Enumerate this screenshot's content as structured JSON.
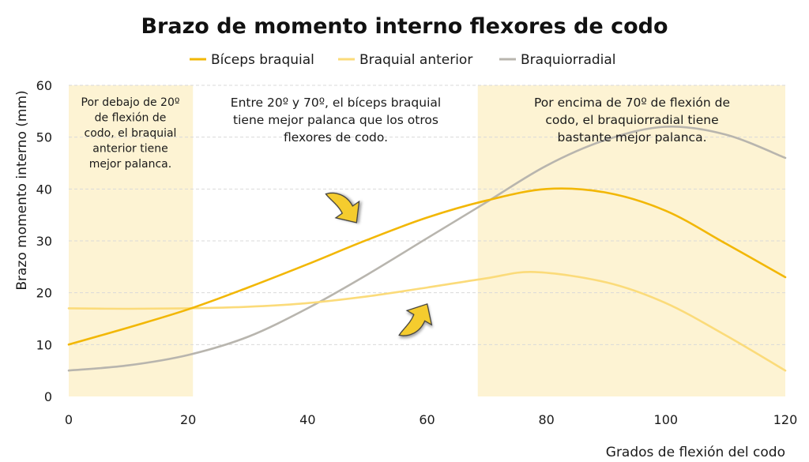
{
  "chart_data": {
    "type": "line",
    "title": "Brazo de momento interno flexores de codo",
    "xlabel": "Grados de flexión del codo",
    "ylabel": "Brazo momento interno (mm)",
    "xlim": [
      0,
      120
    ],
    "ylim": [
      0,
      60
    ],
    "xticks": [
      0,
      20,
      40,
      60,
      80,
      100,
      120
    ],
    "yticks": [
      0,
      10,
      20,
      30,
      40,
      50,
      60
    ],
    "grid": "horizontal-dashed",
    "legend_position": "top",
    "series": [
      {
        "name": "Bíceps braquial",
        "color": "#F2B705",
        "x": [
          0,
          10,
          20,
          30,
          40,
          50,
          60,
          70,
          80,
          90,
          100,
          110,
          120
        ],
        "y": [
          10,
          13.3,
          16.8,
          21,
          25.5,
          30.2,
          34.5,
          37.8,
          40,
          39.3,
          35.8,
          29.5,
          23
        ]
      },
      {
        "name": "Braquial anterior",
        "color": "#FBDB7A",
        "x": [
          0,
          10,
          20,
          30,
          40,
          50,
          60,
          70,
          78,
          90,
          100,
          110,
          120
        ],
        "y": [
          17,
          16.9,
          17,
          17.3,
          18,
          19.3,
          21,
          22.8,
          24,
          22,
          18,
          11.8,
          5
        ]
      },
      {
        "name": "Braquiorradial",
        "color": "#B8B5AE",
        "x": [
          0,
          10,
          20,
          30,
          40,
          50,
          60,
          70,
          80,
          90,
          100,
          110,
          120
        ],
        "y": [
          5,
          6,
          8,
          11.5,
          17,
          23.5,
          30.5,
          37.5,
          44.5,
          49.5,
          52,
          50.5,
          46
        ]
      }
    ],
    "shaded_regions": [
      {
        "x_range": [
          0,
          20.8
        ],
        "color": "#FDF3D3"
      },
      {
        "x_range": [
          68.5,
          120
        ],
        "color": "#FDF3D3"
      }
    ],
    "annotations": [
      {
        "lines": [
          "Por debajo de 20º",
          "de flexión de",
          "codo, el braquial",
          "anterior tiene",
          "mejor palanca."
        ]
      },
      {
        "lines": [
          "Entre 20º y 70º, el bíceps braquial",
          "tiene mejor palanca que los otros",
          "flexores de codo."
        ]
      },
      {
        "lines": [
          "Por encima de 70º de flexión de",
          "codo, el braquiorradial tiene",
          "bastante mejor palanca."
        ]
      }
    ],
    "arrow_color": "#F5CC2E"
  }
}
